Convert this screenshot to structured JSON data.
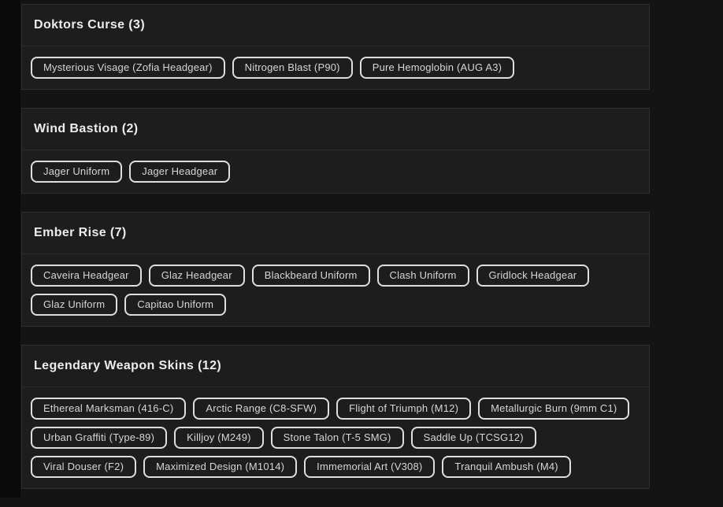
{
  "colors": {
    "page_bg": "#141414",
    "gutter_bg": "#0a0a0a",
    "card_bg": "#1d1d1d",
    "card_border": "#2e2e2e",
    "divider": "#2b2b2b",
    "pill_border": "#dedede",
    "pill_text": "#d6d6d6",
    "title_text": "#ececec"
  },
  "sections": [
    {
      "label": "Doktors Curse (3)",
      "name": "Doktors Curse",
      "count": 3,
      "items": [
        "Mysterious Visage (Zofia Headgear)",
        "Nitrogen Blast (P90)",
        "Pure Hemoglobin (AUG A3)"
      ]
    },
    {
      "label": "Wind Bastion (2)",
      "name": "Wind Bastion",
      "count": 2,
      "items": [
        "Jager Uniform",
        "Jager Headgear"
      ]
    },
    {
      "label": "Ember Rise (7)",
      "name": "Ember Rise",
      "count": 7,
      "items": [
        "Caveira Headgear",
        "Glaz Headgear",
        "Blackbeard Uniform",
        "Clash Uniform",
        "Gridlock Headgear",
        "Glaz Uniform",
        "Capitao Uniform"
      ]
    },
    {
      "label": "Legendary Weapon Skins (12)",
      "name": "Legendary Weapon Skins",
      "count": 12,
      "items": [
        "Ethereal Marksman (416-C)",
        "Arctic Range (C8-SFW)",
        "Flight of Triumph (M12)",
        "Metallurgic Burn (9mm C1)",
        "Urban Graffiti (Type-89)",
        "Killjoy (M249)",
        "Stone Talon (T-5 SMG)",
        "Saddle Up (TCSG12)",
        "Viral Douser (F2)",
        "Maximized Design (M1014)",
        "Immemorial Art (V308)",
        "Tranquil Ambush (M4)"
      ]
    }
  ]
}
